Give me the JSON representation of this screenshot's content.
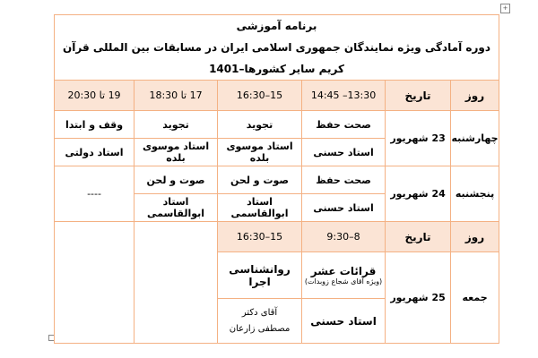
{
  "title": "برنامه آموزشی",
  "subtitle": "دوره آمادگی ویژه نمایندگان جمهوری اسلامی ایران در مسابقات بین المللی قرآن کریم سایر کشورها–1401",
  "header1": {
    "day": "روز",
    "date": "تاریخ",
    "t1": "13:30– 14:45",
    "t2": "15–16:30",
    "t3": "17 تا 18:30",
    "t4": "19 تا 20:30"
  },
  "rows": [
    {
      "day": "چهارشنبه",
      "date": "23 شهریور",
      "subjects": [
        "صحت حفظ",
        "تجوید",
        "تجوید",
        "وقف و ابتدا"
      ],
      "teachers": [
        "استاد حسنی",
        "استاد موسوی بلده",
        "استاد موسوی بلده",
        "استاد دولتی"
      ]
    },
    {
      "day": "پنجشنبه",
      "date": "24 شهریور",
      "subjects": [
        "صحت حفظ",
        "صوت و لحن",
        "صوت و لحن"
      ],
      "teachers": [
        "استاد حسنی",
        "استاد ابوالقاسمی",
        "استاد ابوالقاسمی"
      ],
      "empty": "----"
    }
  ],
  "header2": {
    "day": "روز",
    "date": "تاریخ",
    "t1": "8–9:30",
    "t2": "15–16:30"
  },
  "friday": {
    "day": "جمعه",
    "date": "25 شهریور",
    "s1": "قرائات عشر",
    "s1_note": "(ویژه آقای شجاع زوبدات)",
    "s2": "روانشناسی اجرا",
    "teacher1": "استاد حسنی",
    "teacher2": "آقای دکتر مصطفی زارعان"
  }
}
